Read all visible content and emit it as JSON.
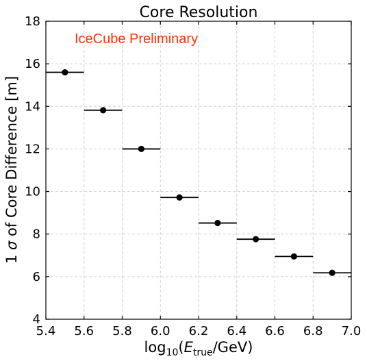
{
  "chart_data": {
    "type": "scatter",
    "title": "Core Resolution",
    "annotation": "IceCube Preliminary",
    "xlabel_parts": [
      "log",
      "10",
      "(",
      "E",
      "true",
      "/GeV)"
    ],
    "ylabel_parts": [
      "1 ",
      "σ",
      " of Core Difference [m]"
    ],
    "xlim": [
      5.4,
      7.0
    ],
    "ylim": [
      4,
      18
    ],
    "xticks": [
      "5.4",
      "5.6",
      "5.8",
      "6.0",
      "6.2",
      "6.4",
      "6.6",
      "6.8",
      "7.0"
    ],
    "yticks": [
      "4",
      "6",
      "8",
      "10",
      "12",
      "14",
      "16",
      "18"
    ],
    "grid": true,
    "x": [
      5.5,
      5.7,
      5.9,
      6.1,
      6.3,
      6.5,
      6.7,
      6.9
    ],
    "xerr": 0.1,
    "y": [
      15.6,
      13.82,
      12.0,
      9.72,
      8.52,
      7.76,
      6.95,
      6.18
    ],
    "colors": {
      "points": "#000000",
      "annotation": "#ff3300",
      "grid": "#d0d0d0"
    }
  }
}
